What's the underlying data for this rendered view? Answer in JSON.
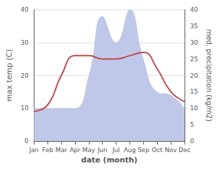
{
  "chart_data": {
    "type": "line",
    "categories": [
      "Jan",
      "Feb",
      "Mar",
      "Apr",
      "May",
      "Jun",
      "Jul",
      "Aug",
      "Sep",
      "Oct",
      "Nov",
      "Dec"
    ],
    "series": [
      {
        "type": "area",
        "color": "#bfc8e8",
        "axis": "y2",
        "values": [
          10,
          10,
          10,
          10,
          20,
          38,
          30,
          40,
          25,
          15,
          14,
          10
        ]
      },
      {
        "type": "line",
        "color": "#c0474a",
        "values": [
          9.0,
          11.0,
          20.0,
          26.0,
          26.0,
          25.0,
          25.0,
          26.0,
          27.0,
          22.0,
          15.0,
          12.0
        ]
      }
    ],
    "xlabel": "date (month)",
    "ylabel": "max temp (C)",
    "y2label": "med. precipitation (kg/m2)",
    "ylim": [
      0,
      40
    ],
    "yticks": [
      0,
      10,
      20,
      30,
      40
    ],
    "y2lim": [
      0,
      40
    ],
    "y2ticks": [
      0,
      5,
      10,
      15,
      20,
      25,
      30,
      35,
      40
    ],
    "grid": true
  }
}
